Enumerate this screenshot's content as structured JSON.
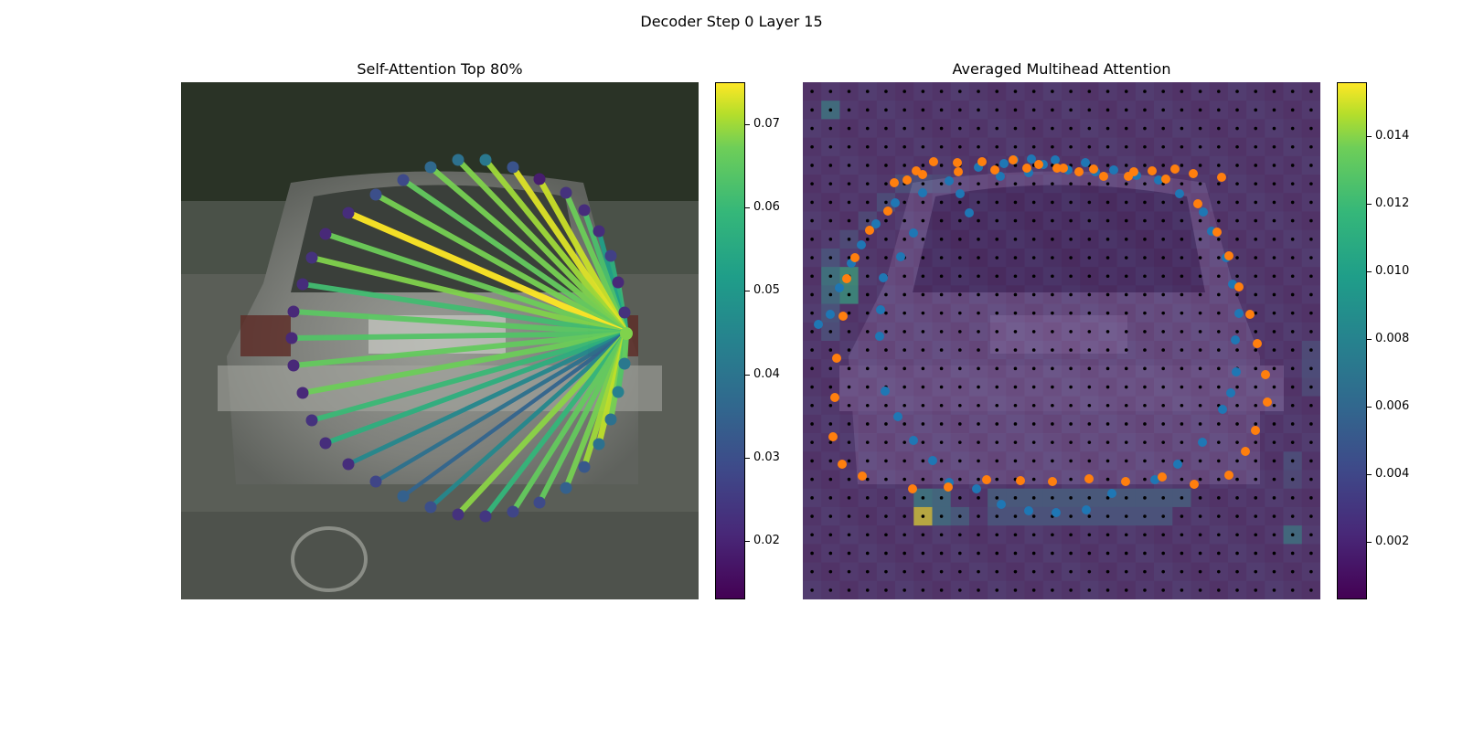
{
  "figure": {
    "suptitle": "Decoder Step 0 Layer 15"
  },
  "colors": {
    "viridis": [
      "#440154",
      "#482878",
      "#3e4989",
      "#31688e",
      "#26828e",
      "#1f9e89",
      "#35b779",
      "#6ece58",
      "#b5de2b",
      "#fde725"
    ],
    "blue_points": "#1f77b4",
    "orange_points": "#ff7f0e",
    "grid_dots": "#000000"
  },
  "chart_data": [
    {
      "type": "scatter",
      "title": "Self-Attention Top 80%",
      "colorbar": {
        "min": 0.013,
        "max": 0.075,
        "ticks": [
          "0.02",
          "0.03",
          "0.04",
          "0.05",
          "0.06",
          "0.07"
        ]
      },
      "query_point": {
        "x": 487,
        "y": 275,
        "value": 0.063
      },
      "points": [
        {
          "x": 487,
          "y": 275,
          "value": 0.063
        },
        {
          "x": 485,
          "y": 252,
          "value": 0.022
        },
        {
          "x": 478,
          "y": 219,
          "value": 0.02
        },
        {
          "x": 470,
          "y": 190,
          "value": 0.025
        },
        {
          "x": 457,
          "y": 163,
          "value": 0.021
        },
        {
          "x": 441,
          "y": 140,
          "value": 0.021
        },
        {
          "x": 421,
          "y": 121,
          "value": 0.022
        },
        {
          "x": 392,
          "y": 106,
          "value": 0.018
        },
        {
          "x": 363,
          "y": 93,
          "value": 0.029
        },
        {
          "x": 333,
          "y": 85,
          "value": 0.038
        },
        {
          "x": 303,
          "y": 85,
          "value": 0.036
        },
        {
          "x": 273,
          "y": 93,
          "value": 0.034
        },
        {
          "x": 243,
          "y": 107,
          "value": 0.027
        },
        {
          "x": 213,
          "y": 123,
          "value": 0.028
        },
        {
          "x": 183,
          "y": 143,
          "value": 0.021
        },
        {
          "x": 158,
          "y": 166,
          "value": 0.02
        },
        {
          "x": 143,
          "y": 192,
          "value": 0.022
        },
        {
          "x": 133,
          "y": 221,
          "value": 0.021
        },
        {
          "x": 123,
          "y": 251,
          "value": 0.02
        },
        {
          "x": 121,
          "y": 280,
          "value": 0.02
        },
        {
          "x": 123,
          "y": 310,
          "value": 0.02
        },
        {
          "x": 133,
          "y": 340,
          "value": 0.02
        },
        {
          "x": 143,
          "y": 370,
          "value": 0.022
        },
        {
          "x": 158,
          "y": 395,
          "value": 0.021
        },
        {
          "x": 183,
          "y": 418,
          "value": 0.021
        },
        {
          "x": 213,
          "y": 437,
          "value": 0.026
        },
        {
          "x": 243,
          "y": 453,
          "value": 0.032
        },
        {
          "x": 273,
          "y": 465,
          "value": 0.028
        },
        {
          "x": 303,
          "y": 473,
          "value": 0.022
        },
        {
          "x": 333,
          "y": 475,
          "value": 0.023
        },
        {
          "x": 363,
          "y": 470,
          "value": 0.026
        },
        {
          "x": 392,
          "y": 460,
          "value": 0.027
        },
        {
          "x": 421,
          "y": 444,
          "value": 0.032
        },
        {
          "x": 441,
          "y": 421,
          "value": 0.03
        },
        {
          "x": 457,
          "y": 396,
          "value": 0.036
        },
        {
          "x": 470,
          "y": 369,
          "value": 0.036
        },
        {
          "x": 478,
          "y": 339,
          "value": 0.04
        },
        {
          "x": 485,
          "y": 308,
          "value": 0.038
        }
      ],
      "edges": [
        {
          "to": 1,
          "value": 0.044
        },
        {
          "to": 2,
          "value": 0.055
        },
        {
          "to": 3,
          "value": 0.052
        },
        {
          "to": 4,
          "value": 0.048
        },
        {
          "to": 5,
          "value": 0.057
        },
        {
          "to": 6,
          "value": 0.061
        },
        {
          "to": 7,
          "value": 0.07
        },
        {
          "to": 8,
          "value": 0.072
        },
        {
          "to": 9,
          "value": 0.066
        },
        {
          "to": 10,
          "value": 0.063
        },
        {
          "to": 11,
          "value": 0.062
        },
        {
          "to": 12,
          "value": 0.06
        },
        {
          "to": 13,
          "value": 0.062
        },
        {
          "to": 14,
          "value": 0.075
        },
        {
          "to": 15,
          "value": 0.061
        },
        {
          "to": 16,
          "value": 0.063
        },
        {
          "to": 17,
          "value": 0.056
        },
        {
          "to": 18,
          "value": 0.059
        },
        {
          "to": 19,
          "value": 0.058
        },
        {
          "to": 20,
          "value": 0.06
        },
        {
          "to": 21,
          "value": 0.061
        },
        {
          "to": 22,
          "value": 0.055
        },
        {
          "to": 23,
          "value": 0.052
        },
        {
          "to": 24,
          "value": 0.042
        },
        {
          "to": 25,
          "value": 0.036
        },
        {
          "to": 26,
          "value": 0.033
        },
        {
          "to": 27,
          "value": 0.042
        },
        {
          "to": 28,
          "value": 0.064
        },
        {
          "to": 29,
          "value": 0.054
        },
        {
          "to": 30,
          "value": 0.06
        },
        {
          "to": 31,
          "value": 0.06
        },
        {
          "to": 32,
          "value": 0.062
        },
        {
          "to": 33,
          "value": 0.066
        },
        {
          "to": 34,
          "value": 0.069
        },
        {
          "to": 35,
          "value": 0.062
        },
        {
          "to": 36,
          "value": 0.058
        },
        {
          "to": 37,
          "value": 0.06
        }
      ]
    },
    {
      "type": "heatmap",
      "title": "Averaged Multihead Attention",
      "colorbar": {
        "min": 0.0003,
        "max": 0.0156,
        "ticks": [
          "0.002",
          "0.004",
          "0.006",
          "0.008",
          "0.010",
          "0.012",
          "0.014"
        ]
      },
      "grid": {
        "rows": 28,
        "cols": 28,
        "background_value": 0.0012
      },
      "hot_cells": [
        {
          "r": 23,
          "c": 6,
          "value": 0.0156
        },
        {
          "r": 1,
          "c": 1,
          "value": 0.0065
        },
        {
          "r": 10,
          "c": 2,
          "value": 0.0095
        },
        {
          "r": 11,
          "c": 2,
          "value": 0.009
        },
        {
          "r": 10,
          "c": 1,
          "value": 0.007
        },
        {
          "r": 11,
          "c": 1,
          "value": 0.006
        },
        {
          "r": 22,
          "c": 6,
          "value": 0.007
        },
        {
          "r": 22,
          "c": 7,
          "value": 0.006
        },
        {
          "r": 23,
          "c": 7,
          "value": 0.006
        },
        {
          "r": 23,
          "c": 8,
          "value": 0.0045
        },
        {
          "r": 24,
          "c": 26,
          "value": 0.0062
        },
        {
          "r": 22,
          "c": 10,
          "value": 0.0045
        },
        {
          "r": 22,
          "c": 11,
          "value": 0.0045
        },
        {
          "r": 22,
          "c": 12,
          "value": 0.0045
        },
        {
          "r": 22,
          "c": 13,
          "value": 0.0045
        },
        {
          "r": 22,
          "c": 14,
          "value": 0.0045
        },
        {
          "r": 22,
          "c": 15,
          "value": 0.0045
        },
        {
          "r": 22,
          "c": 16,
          "value": 0.0045
        },
        {
          "r": 22,
          "c": 17,
          "value": 0.0045
        },
        {
          "r": 22,
          "c": 18,
          "value": 0.0045
        },
        {
          "r": 22,
          "c": 19,
          "value": 0.0045
        },
        {
          "r": 22,
          "c": 20,
          "value": 0.0045
        },
        {
          "r": 23,
          "c": 10,
          "value": 0.004
        },
        {
          "r": 23,
          "c": 11,
          "value": 0.004
        },
        {
          "r": 23,
          "c": 12,
          "value": 0.004
        },
        {
          "r": 23,
          "c": 13,
          "value": 0.004
        },
        {
          "r": 23,
          "c": 14,
          "value": 0.004
        },
        {
          "r": 23,
          "c": 15,
          "value": 0.004
        },
        {
          "r": 23,
          "c": 16,
          "value": 0.004
        },
        {
          "r": 23,
          "c": 17,
          "value": 0.004
        },
        {
          "r": 23,
          "c": 18,
          "value": 0.004
        },
        {
          "r": 23,
          "c": 19,
          "value": 0.004
        },
        {
          "r": 5,
          "c": 5,
          "value": 0.0035
        },
        {
          "r": 5,
          "c": 6,
          "value": 0.0035
        },
        {
          "r": 5,
          "c": 7,
          "value": 0.003
        },
        {
          "r": 6,
          "c": 4,
          "value": 0.0033
        },
        {
          "r": 7,
          "c": 3,
          "value": 0.003
        },
        {
          "r": 8,
          "c": 2,
          "value": 0.0032
        },
        {
          "r": 9,
          "c": 1,
          "value": 0.004
        },
        {
          "r": 12,
          "c": 1,
          "value": 0.004
        },
        {
          "r": 13,
          "c": 1,
          "value": 0.0035
        },
        {
          "r": 14,
          "c": 27,
          "value": 0.0032
        },
        {
          "r": 15,
          "c": 27,
          "value": 0.0034
        },
        {
          "r": 16,
          "c": 27,
          "value": 0.003
        },
        {
          "r": 20,
          "c": 26,
          "value": 0.0034
        },
        {
          "r": 21,
          "c": 26,
          "value": 0.003
        }
      ],
      "blue_points": [
        [
          231,
          85
        ],
        [
          263,
          90
        ],
        [
          290,
          96
        ],
        [
          320,
          98
        ],
        [
          172,
          122
        ],
        [
          182,
          143
        ],
        [
          216,
          103
        ],
        [
          247,
          99
        ],
        [
          121,
          165
        ],
        [
          107,
          191
        ],
        [
          88,
          214
        ],
        [
          85,
          249
        ],
        [
          84,
          278
        ],
        [
          90,
          338
        ],
        [
          104,
          366
        ],
        [
          121,
          392
        ],
        [
          142,
          414
        ],
        [
          160,
          438
        ],
        [
          190,
          445
        ],
        [
          217,
          462
        ],
        [
          247,
          469
        ],
        [
          277,
          471
        ],
        [
          310,
          468
        ],
        [
          338,
          450
        ],
        [
          385,
          435
        ],
        [
          410,
          418
        ],
        [
          437,
          394
        ],
        [
          459,
          358
        ],
        [
          468,
          340
        ],
        [
          474,
          317
        ],
        [
          473,
          282
        ],
        [
          477,
          253
        ],
        [
          470,
          221
        ],
        [
          463,
          192
        ],
        [
          447,
          163
        ],
        [
          438,
          142
        ],
        [
          412,
          122
        ],
        [
          389,
          107
        ],
        [
          365,
          102
        ],
        [
          340,
          96
        ],
        [
          309,
          88
        ],
        [
          276,
          85
        ],
        [
          250,
          84
        ],
        [
          220,
          89
        ],
        [
          192,
          93
        ],
        [
          160,
          108
        ],
        [
          131,
          121
        ],
        [
          101,
          132
        ],
        [
          80,
          155
        ],
        [
          64,
          178
        ],
        [
          53,
          198
        ],
        [
          40,
          225
        ],
        [
          30,
          254
        ],
        [
          17,
          265
        ]
      ],
      "orange_points": [
        [
          100,
          110
        ],
        [
          131,
          101
        ],
        [
          170,
          98
        ],
        [
          210,
          96
        ],
        [
          245,
          94
        ],
        [
          285,
          94
        ],
        [
          318,
          95
        ],
        [
          362,
          98
        ],
        [
          397,
          106
        ],
        [
          432,
          133
        ],
        [
          453,
          164
        ],
        [
          466,
          190
        ],
        [
          477,
          224
        ],
        [
          489,
          254
        ],
        [
          497,
          286
        ],
        [
          506,
          320
        ],
        [
          508,
          350
        ],
        [
          495,
          381
        ],
        [
          484,
          404
        ],
        [
          466,
          430
        ],
        [
          428,
          440
        ],
        [
          393,
          432
        ],
        [
          353,
          437
        ],
        [
          313,
          434
        ],
        [
          273,
          437
        ],
        [
          238,
          436
        ],
        [
          201,
          435
        ],
        [
          159,
          443
        ],
        [
          120,
          445
        ],
        [
          65,
          431
        ],
        [
          43,
          418
        ],
        [
          33,
          388
        ],
        [
          35,
          345
        ],
        [
          37,
          302
        ],
        [
          44,
          256
        ],
        [
          48,
          215
        ],
        [
          57,
          192
        ],
        [
          73,
          162
        ],
        [
          93,
          141
        ],
        [
          114,
          107
        ],
        [
          124,
          97
        ],
        [
          143,
          87
        ],
        [
          169,
          88
        ],
        [
          196,
          87
        ],
        [
          230,
          85
        ],
        [
          258,
          90
        ],
        [
          278,
          94
        ],
        [
          302,
          98
        ],
        [
          329,
          103
        ],
        [
          356,
          103
        ],
        [
          382,
          97
        ],
        [
          407,
          95
        ],
        [
          427,
          100
        ],
        [
          458,
          104
        ]
      ]
    }
  ]
}
